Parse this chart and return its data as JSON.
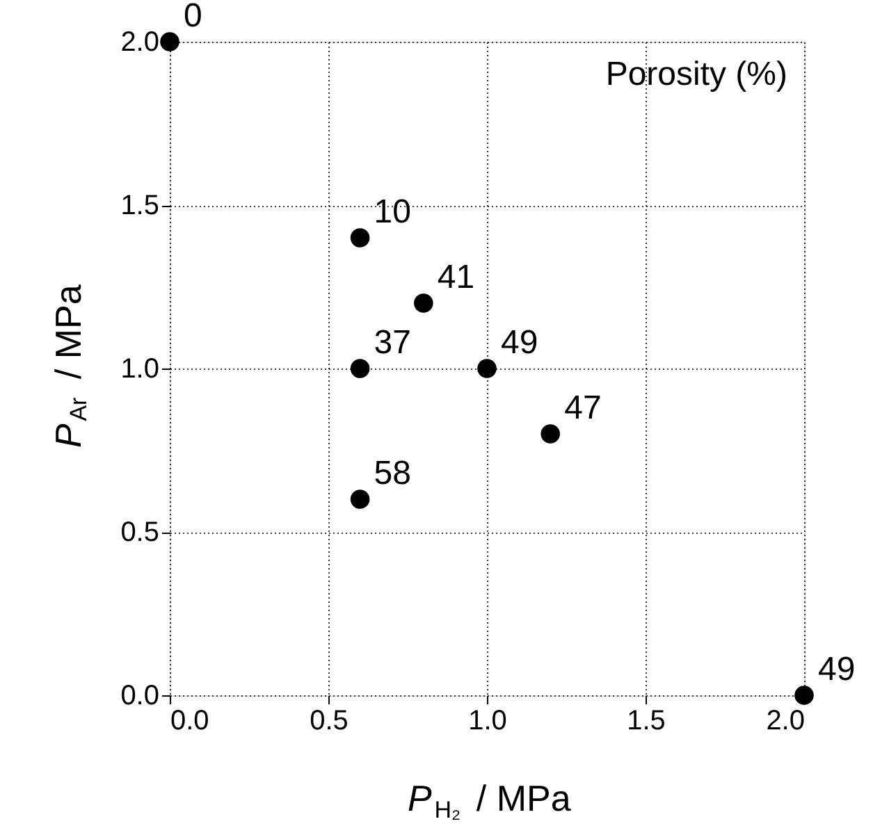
{
  "chart_data": {
    "type": "scatter",
    "xlabel": "P$_{H₂}$ / MPa",
    "ylabel": "P$_{Ar}$ / MPa",
    "annotations": [
      "Porosity (%)",
      {
        "text": "0",
        "x": 0.0,
        "y": 2.0
      },
      {
        "text": "10",
        "x": 0.6,
        "y": 1.4
      },
      {
        "text": "41",
        "x": 0.8,
        "y": 1.2
      },
      {
        "text": "37",
        "x": 0.6,
        "y": 1.0
      },
      {
        "text": "49",
        "x": 1.0,
        "y": 1.0
      },
      {
        "text": "47",
        "x": 1.2,
        "y": 0.8
      },
      {
        "text": "58",
        "x": 0.6,
        "y": 0.6
      },
      {
        "text": "49",
        "x": 2.0,
        "y": 0.0
      }
    ],
    "x": [
      0.0,
      0.6,
      0.8,
      0.6,
      1.0,
      1.2,
      0.6,
      2.0
    ],
    "values": [
      2.0,
      1.4,
      1.2,
      1.0,
      1.0,
      0.8,
      0.6,
      0.0
    ],
    "color": "#000000",
    "marker": "circle",
    "xlim": [
      0,
      2
    ],
    "ylim": [
      0,
      2
    ],
    "xticks": [
      {
        "value": 0,
        "label": "0.0"
      },
      {
        "value": 0.5,
        "label": "0.5"
      },
      {
        "value": 1,
        "label": "1.0"
      },
      {
        "value": 1.5,
        "label": "1.5"
      },
      {
        "value": 2,
        "label": "2.0"
      }
    ],
    "yticks": [
      {
        "value": 0,
        "label": "0.0"
      },
      {
        "value": 0.5,
        "label": "0.5"
      },
      {
        "value": 1,
        "label": "1.0"
      },
      {
        "value": 1.5,
        "label": "1.5"
      },
      {
        "value": 2,
        "label": "2.0"
      }
    ],
    "grid": true
  }
}
